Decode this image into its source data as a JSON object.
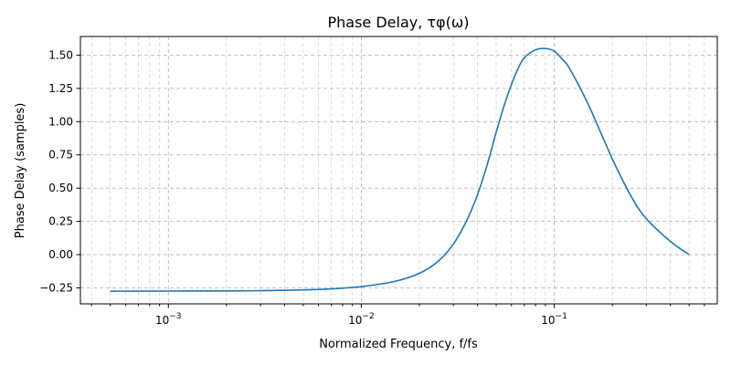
{
  "chart_data": {
    "type": "line",
    "title": "Phase Delay, τφ(ω)",
    "xlabel": "Normalized Frequency, f/fs",
    "ylabel": "Phase Delay (samples)",
    "xscale": "log",
    "xlim": [
      0.00035,
      0.7
    ],
    "ylim": [
      -0.37,
      1.64
    ],
    "grid": true,
    "x_ticks": [
      {
        "value": 0.001,
        "base": "10",
        "exp": "−3"
      },
      {
        "value": 0.01,
        "base": "10",
        "exp": "−2"
      },
      {
        "value": 0.1,
        "base": "10",
        "exp": "−1"
      }
    ],
    "y_ticks": [
      {
        "value": -0.25,
        "label": "−0.25"
      },
      {
        "value": 0.0,
        "label": "0.00"
      },
      {
        "value": 0.25,
        "label": "0.25"
      },
      {
        "value": 0.5,
        "label": "0.50"
      },
      {
        "value": 0.75,
        "label": "0.75"
      },
      {
        "value": 1.0,
        "label": "1.00"
      },
      {
        "value": 1.25,
        "label": "1.25"
      },
      {
        "value": 1.5,
        "label": "1.50"
      }
    ],
    "series": [
      {
        "color": "#1f77b4",
        "points": [
          [
            0.0005,
            -0.275
          ],
          [
            0.001,
            -0.274
          ],
          [
            0.002,
            -0.273
          ],
          [
            0.003,
            -0.271
          ],
          [
            0.005,
            -0.265
          ],
          [
            0.007,
            -0.257
          ],
          [
            0.01,
            -0.24
          ],
          [
            0.015,
            -0.2
          ],
          [
            0.02,
            -0.14
          ],
          [
            0.025,
            -0.05
          ],
          [
            0.03,
            0.08
          ],
          [
            0.035,
            0.25
          ],
          [
            0.04,
            0.45
          ],
          [
            0.045,
            0.68
          ],
          [
            0.05,
            0.92
          ],
          [
            0.055,
            1.12
          ],
          [
            0.06,
            1.28
          ],
          [
            0.065,
            1.4
          ],
          [
            0.07,
            1.48
          ],
          [
            0.08,
            1.54
          ],
          [
            0.09,
            1.55
          ],
          [
            0.1,
            1.53
          ],
          [
            0.11,
            1.47
          ],
          [
            0.12,
            1.4
          ],
          [
            0.15,
            1.13
          ],
          [
            0.2,
            0.72
          ],
          [
            0.25,
            0.44
          ],
          [
            0.3,
            0.27
          ],
          [
            0.4,
            0.1
          ],
          [
            0.5,
            0.0
          ]
        ]
      }
    ]
  }
}
